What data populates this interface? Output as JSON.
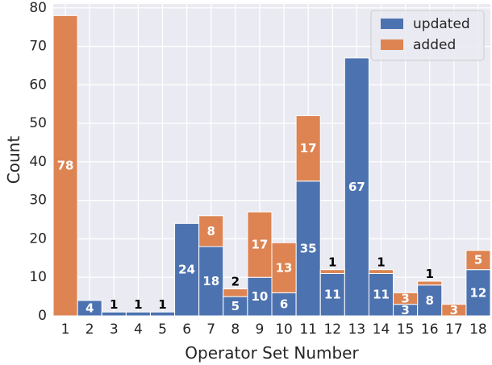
{
  "chart_data": {
    "type": "bar",
    "stacked": true,
    "title": "",
    "xlabel": "Operator Set Number",
    "ylabel": "Count",
    "ylim": [
      0,
      81
    ],
    "yticks": [
      0,
      10,
      20,
      30,
      40,
      50,
      60,
      70,
      80
    ],
    "grid": true,
    "legend_position": "top-right",
    "categories": [
      "1",
      "2",
      "3",
      "4",
      "5",
      "6",
      "7",
      "8",
      "9",
      "10",
      "11",
      "12",
      "13",
      "14",
      "15",
      "16",
      "17",
      "18"
    ],
    "series": [
      {
        "name": "updated",
        "color": "#4c72b0",
        "values": [
          0,
          4,
          1,
          1,
          1,
          24,
          18,
          5,
          10,
          6,
          35,
          11,
          67,
          11,
          3,
          8,
          0,
          12
        ]
      },
      {
        "name": "added",
        "color": "#dd8452",
        "values": [
          78,
          0,
          0,
          0,
          0,
          0,
          8,
          2,
          17,
          13,
          17,
          1,
          0,
          1,
          3,
          1,
          3,
          5
        ]
      }
    ],
    "data_labels": [
      {
        "category": "1",
        "series": "added",
        "text": "78",
        "color": "#ffffff"
      },
      {
        "category": "2",
        "series": "updated",
        "text": "4",
        "color": "#ffffff"
      },
      {
        "category": "3",
        "series": "updated",
        "text": "1",
        "color": "#000000",
        "outside": true
      },
      {
        "category": "4",
        "series": "updated",
        "text": "1",
        "color": "#000000",
        "outside": true
      },
      {
        "category": "5",
        "series": "updated",
        "text": "1",
        "color": "#000000",
        "outside": true
      },
      {
        "category": "6",
        "series": "updated",
        "text": "24",
        "color": "#ffffff"
      },
      {
        "category": "7",
        "series": "updated",
        "text": "18",
        "color": "#ffffff"
      },
      {
        "category": "7",
        "series": "added",
        "text": "8",
        "color": "#ffffff"
      },
      {
        "category": "8",
        "series": "updated",
        "text": "5",
        "color": "#ffffff"
      },
      {
        "category": "8",
        "series": "added",
        "text": "2",
        "color": "#000000",
        "outside": true
      },
      {
        "category": "9",
        "series": "updated",
        "text": "10",
        "color": "#ffffff"
      },
      {
        "category": "9",
        "series": "added",
        "text": "17",
        "color": "#ffffff"
      },
      {
        "category": "10",
        "series": "updated",
        "text": "6",
        "color": "#ffffff"
      },
      {
        "category": "10",
        "series": "added",
        "text": "13",
        "color": "#ffffff"
      },
      {
        "category": "11",
        "series": "updated",
        "text": "35",
        "color": "#ffffff"
      },
      {
        "category": "11",
        "series": "added",
        "text": "17",
        "color": "#ffffff"
      },
      {
        "category": "12",
        "series": "updated",
        "text": "11",
        "color": "#ffffff"
      },
      {
        "category": "12",
        "series": "added",
        "text": "1",
        "color": "#000000",
        "outside": true
      },
      {
        "category": "13",
        "series": "updated",
        "text": "67",
        "color": "#ffffff"
      },
      {
        "category": "14",
        "series": "updated",
        "text": "11",
        "color": "#ffffff"
      },
      {
        "category": "14",
        "series": "added",
        "text": "1",
        "color": "#000000",
        "outside": true
      },
      {
        "category": "15",
        "series": "updated",
        "text": "3",
        "color": "#ffffff"
      },
      {
        "category": "15",
        "series": "added",
        "text": "3",
        "color": "#ffffff"
      },
      {
        "category": "16",
        "series": "updated",
        "text": "8",
        "color": "#ffffff"
      },
      {
        "category": "16",
        "series": "added",
        "text": "1",
        "color": "#000000",
        "outside": true
      },
      {
        "category": "17",
        "series": "added",
        "text": "3",
        "color": "#ffffff"
      },
      {
        "category": "18",
        "series": "updated",
        "text": "12",
        "color": "#ffffff"
      },
      {
        "category": "18",
        "series": "added",
        "text": "5",
        "color": "#ffffff"
      }
    ],
    "colors": {
      "plot_background": "#eaeaf2",
      "grid": "#ffffff",
      "text": "#262626"
    }
  }
}
